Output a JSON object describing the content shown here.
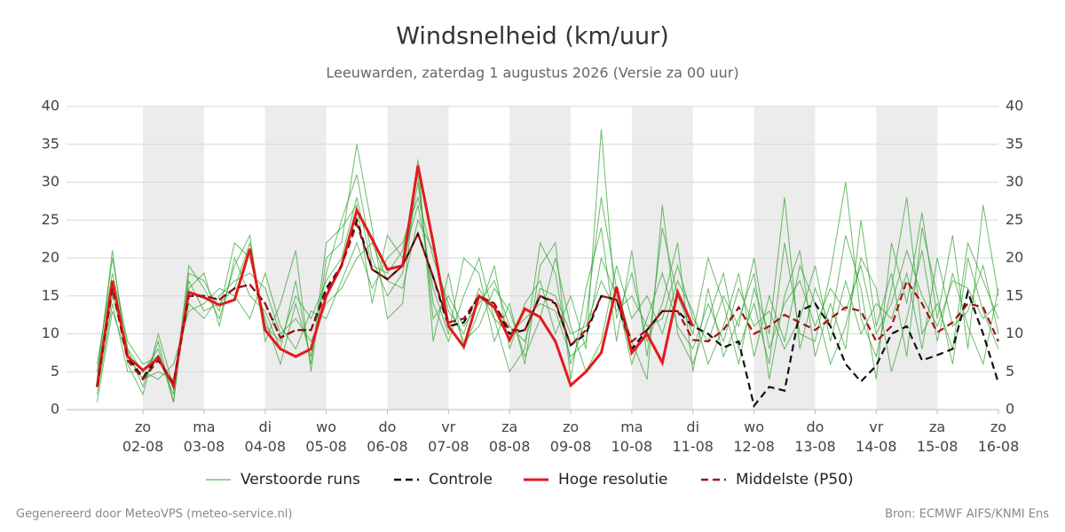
{
  "chart_data": {
    "type": "line",
    "title": "Windsnelheid (km/uur)",
    "subtitle": "Leeuwarden, zaterdag  1 augustus 2026 (Versie za 00 uur)",
    "footer_left": "Gegenereerd door MeteoVPS (meteo-service.nl)",
    "footer_right": "Bron: ECMWF AIFS/KNMI Ens",
    "xlim": [
      -6,
      360
    ],
    "xticks": [
      {
        "value": 24,
        "label": "zo\n02-08"
      },
      {
        "value": 48,
        "label": "ma\n03-08"
      },
      {
        "value": 72,
        "label": "di\n04-08"
      },
      {
        "value": 96,
        "label": "wo\n05-08"
      },
      {
        "value": 120,
        "label": "do\n06-08"
      },
      {
        "value": 144,
        "label": "vr\n07-08"
      },
      {
        "value": 168,
        "label": "za\n08-08"
      },
      {
        "value": 192,
        "label": "zo\n09-08"
      },
      {
        "value": 216,
        "label": "ma\n10-08"
      },
      {
        "value": 240,
        "label": "di\n11-08"
      },
      {
        "value": 264,
        "label": "wo\n12-08"
      },
      {
        "value": 288,
        "label": "do\n13-08"
      },
      {
        "value": 312,
        "label": "vr\n14-08"
      },
      {
        "value": 336,
        "label": "za\n15-08"
      },
      {
        "value": 360,
        "label": "zo\n16-08"
      }
    ],
    "ylim": [
      0,
      40
    ],
    "yticks": [
      0,
      5,
      10,
      15,
      20,
      25,
      30,
      35,
      40
    ],
    "grid": true,
    "x": [
      6,
      12,
      18,
      24,
      30,
      36,
      42,
      48,
      54,
      60,
      66,
      72,
      78,
      84,
      90,
      96,
      102,
      108,
      114,
      120,
      126,
      132,
      138,
      144,
      150,
      156,
      162,
      168,
      174,
      180,
      186,
      192,
      198,
      204,
      210,
      216,
      222,
      228,
      234,
      240,
      246,
      252,
      258,
      264,
      270,
      276,
      282,
      288,
      294,
      300,
      306,
      312,
      318,
      324,
      330,
      336,
      342,
      348,
      354,
      360
    ],
    "ensemble": {
      "name": "Verstoorde runs",
      "color": "#2ca02c",
      "members": [
        [
          5,
          20,
          8,
          3,
          9,
          1,
          18,
          17,
          13,
          22,
          20,
          12,
          6,
          14,
          7,
          18,
          25,
          31,
          20,
          15,
          18,
          30,
          14,
          9,
          15,
          20,
          12,
          5,
          8,
          22,
          18,
          6,
          12,
          28,
          16,
          9,
          4,
          27,
          10,
          6,
          12,
          18,
          8,
          14,
          6,
          22,
          10,
          9,
          18,
          30,
          12,
          7,
          16,
          28,
          10,
          14,
          8,
          22,
          17,
          12
        ],
        [
          2,
          14,
          5,
          5,
          4,
          6,
          13,
          14,
          16,
          15,
          12,
          18,
          11,
          8,
          13,
          12,
          17,
          22,
          16,
          20,
          22,
          28,
          20,
          14,
          9,
          11,
          16,
          13,
          7,
          12,
          20,
          11,
          5,
          9,
          19,
          12,
          15,
          10,
          17,
          13,
          6,
          11,
          18,
          7,
          15,
          9,
          19,
          14,
          6,
          11,
          20,
          16,
          5,
          12,
          21,
          9,
          18,
          11,
          6,
          16
        ],
        [
          6,
          18,
          9,
          6,
          7,
          2,
          19,
          16,
          12,
          19,
          23,
          9,
          14,
          21,
          5,
          20,
          22,
          35,
          24,
          12,
          14,
          33,
          9,
          18,
          8,
          13,
          19,
          8,
          14,
          17,
          10,
          15,
          8,
          37,
          12,
          18,
          9,
          14,
          22,
          5,
          16,
          7,
          12,
          18,
          4,
          15,
          21,
          7,
          14,
          8,
          25,
          11,
          18,
          7,
          24,
          15,
          6,
          20,
          13,
          8
        ],
        [
          1,
          13,
          7,
          4,
          5,
          4,
          14,
          12,
          15,
          17,
          18,
          16,
          10,
          12,
          9,
          14,
          16,
          20,
          22,
          17,
          16,
          25,
          21,
          13,
          10,
          16,
          12,
          10,
          12,
          14,
          13,
          7,
          9,
          20,
          15,
          6,
          12,
          18,
          11,
          8,
          14,
          9,
          16,
          11,
          13,
          8,
          12,
          19,
          9,
          17,
          10,
          14,
          12,
          18,
          8,
          20,
          11,
          13,
          19,
          10
        ],
        [
          4,
          21,
          6,
          2,
          10,
          3,
          16,
          18,
          11,
          20,
          15,
          13,
          8,
          17,
          6,
          22,
          24,
          27,
          14,
          23,
          20,
          27,
          16,
          10,
          20,
          18,
          9,
          14,
          6,
          19,
          22,
          4,
          16,
          24,
          9,
          21,
          7,
          24,
          15,
          10,
          20,
          14,
          6,
          16,
          10,
          28,
          8,
          16,
          11,
          23,
          16,
          4,
          22,
          14,
          26,
          12,
          23,
          8,
          27,
          15
        ],
        [
          3,
          15,
          8,
          5,
          8,
          1,
          17,
          13,
          14,
          16,
          22,
          11,
          9,
          15,
          12,
          17,
          20,
          28,
          19,
          18,
          21,
          31,
          12,
          15,
          11,
          14,
          17,
          11,
          9,
          16,
          15,
          10,
          11,
          17,
          13,
          15,
          11,
          12,
          19,
          12,
          9,
          15,
          11,
          20,
          8,
          14,
          17,
          11,
          16,
          13,
          19,
          10,
          14,
          21,
          15,
          11,
          17,
          16,
          12,
          14
        ]
      ]
    },
    "series": [
      {
        "name": "Controle",
        "color": "#111111",
        "dash": true,
        "values": [
          3,
          16,
          7,
          4.2,
          7,
          3,
          15,
          15,
          14.5,
          16,
          16.5,
          14,
          9.5,
          10.5,
          10.5,
          16,
          19,
          25,
          18.5,
          17.2,
          19,
          23.2,
          17.5,
          11,
          11.5,
          15,
          14,
          10,
          10.5,
          15,
          14,
          8.5,
          10,
          15,
          14.5,
          8,
          10.5,
          13,
          13,
          11,
          10,
          8.2,
          9,
          0.5,
          3,
          2.5,
          13,
          14,
          11,
          6,
          3.7,
          5.8,
          10,
          11,
          6.5,
          7.2,
          8,
          15.5,
          10,
          3.5
        ]
      },
      {
        "name": "Hoge resolutie",
        "color": "#e31a1c",
        "dash": false,
        "values": [
          3,
          17,
          7,
          5.2,
          6.8,
          3.2,
          15.5,
          14.8,
          13.8,
          14.5,
          21.2,
          10.5,
          8,
          7,
          8,
          15,
          19,
          26.3,
          22.5,
          18.5,
          19,
          32.2,
          22,
          11,
          8.3,
          15,
          13.5,
          9.2,
          13.3,
          12.2,
          9,
          3.2,
          5,
          7.5,
          16.2,
          7.5,
          10,
          6.2,
          15.5,
          11,
          null,
          null,
          null,
          null,
          null,
          null,
          null,
          null,
          null,
          null,
          null,
          null,
          null,
          null,
          null,
          null,
          null,
          null,
          null,
          null
        ]
      },
      {
        "name": "Middelste (P50)",
        "color": "#a50f15",
        "dash": true,
        "values": [
          3,
          16,
          6.5,
          4,
          6.5,
          3.5,
          15,
          15,
          14.5,
          16,
          16.5,
          14,
          9.5,
          10.5,
          10.5,
          15.5,
          19,
          24.5,
          18.5,
          17.2,
          19,
          23.2,
          17.5,
          11.5,
          12,
          15,
          14,
          10.5,
          10.5,
          15,
          14.2,
          8.5,
          10.5,
          15,
          14.5,
          9,
          10.5,
          13,
          13,
          9.2,
          9,
          10.5,
          13.5,
          10,
          11,
          12.5,
          11.5,
          10.5,
          12,
          13.5,
          13,
          9,
          11,
          17,
          14,
          10.2,
          11.5,
          14,
          13.5,
          9
        ]
      }
    ]
  }
}
